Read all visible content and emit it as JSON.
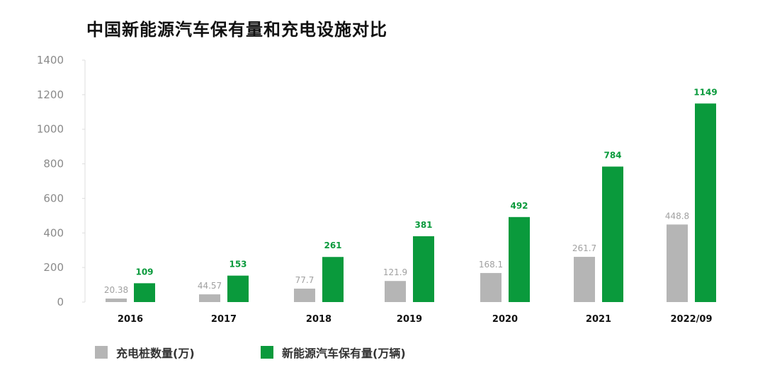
{
  "chart_data": {
    "type": "bar",
    "title": "中国新能源汽车保有量和充电设施对比",
    "categories": [
      "2016",
      "2017",
      "2018",
      "2019",
      "2020",
      "2021",
      "2022/09"
    ],
    "series": [
      {
        "name": "充电桩数量(万)",
        "values": [
          20.38,
          44.57,
          77.7,
          121.9,
          168.1,
          261.7,
          448.8
        ],
        "labels": [
          "20.38",
          "44.57",
          "77.7",
          "121.9",
          "168.1",
          "261.7",
          "448.8"
        ],
        "color": "#b5b5b5"
      },
      {
        "name": "新能源汽车保有量(万辆)",
        "values": [
          109,
          153,
          261,
          381,
          492,
          784,
          1149
        ],
        "labels": [
          "109",
          "153",
          "261",
          "381",
          "492",
          "784",
          "1149"
        ],
        "color": "#0a9a3c"
      }
    ],
    "ylim": [
      0,
      1400
    ],
    "yticks": [
      0,
      200,
      400,
      600,
      800,
      1000,
      1200,
      1400
    ],
    "ytick_labels": [
      "0",
      "200",
      "400",
      "600",
      "800",
      "1000",
      "1200",
      "1400"
    ],
    "grid": false,
    "legend": "bottom-left"
  }
}
